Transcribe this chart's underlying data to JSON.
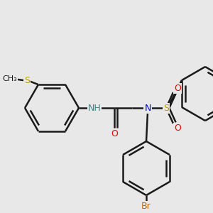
{
  "bg_color": "#e8e8e8",
  "bond_color": "#1a1a1a",
  "bond_width": 1.8,
  "S_color": "#b8a000",
  "N_color": "#0000ee",
  "O_color": "#ee0000",
  "Br_color": "#cc6600",
  "H_color": "#3a8888",
  "fig_width": 3.0,
  "fig_height": 3.0,
  "dpi": 100,
  "xlim": [
    0,
    300
  ],
  "ylim": [
    0,
    300
  ]
}
